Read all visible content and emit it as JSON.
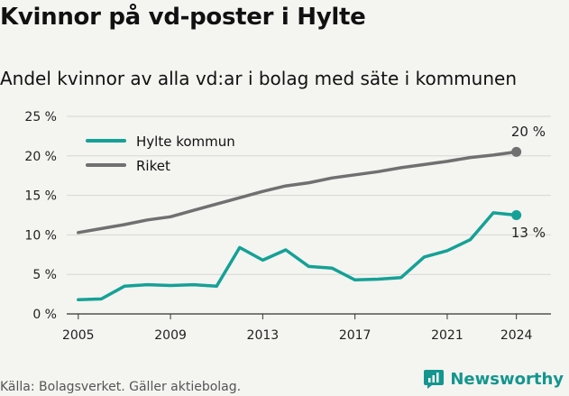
{
  "title": "Kvinnor på vd-poster i Hylte",
  "subtitle": "Andel kvinnor av alla vd:ar i bolag med säte i kommunen",
  "footer": "Källa: Bolagsverket. Gäller aktiebolag.",
  "brand": "Newsworthy",
  "colors": {
    "hylte": "#15a196",
    "riket": "#707070",
    "grid": "#d6d6d2",
    "brand": "#14968e"
  },
  "chart_data": {
    "type": "line",
    "x": [
      2005,
      2006,
      2007,
      2008,
      2009,
      2010,
      2011,
      2012,
      2013,
      2014,
      2015,
      2016,
      2017,
      2018,
      2019,
      2020,
      2021,
      2022,
      2023,
      2024
    ],
    "series": [
      {
        "name": "Hylte kommun",
        "values": [
          1.8,
          1.9,
          3.5,
          3.7,
          3.6,
          3.7,
          3.5,
          8.4,
          6.8,
          8.1,
          6.0,
          5.8,
          4.3,
          4.4,
          4.6,
          7.2,
          8.0,
          9.4,
          12.8,
          12.5
        ],
        "end_label": "13 %"
      },
      {
        "name": "Riket",
        "values": [
          10.3,
          10.8,
          11.3,
          11.9,
          12.3,
          13.1,
          13.9,
          14.7,
          15.5,
          16.2,
          16.6,
          17.2,
          17.6,
          18.0,
          18.5,
          18.9,
          19.3,
          19.8,
          20.1,
          20.5
        ],
        "end_label": "20 %"
      }
    ],
    "ylim": [
      0,
      25
    ],
    "yticks": [
      0,
      5,
      10,
      15,
      20,
      25
    ],
    "ytick_labels": [
      "0 %",
      "5 %",
      "10 %",
      "15 %",
      "20 %",
      "25 %"
    ],
    "xticks": [
      2005,
      2009,
      2013,
      2017,
      2021,
      2024
    ],
    "xtick_labels": [
      "2005",
      "2009",
      "2013",
      "2017",
      "2021",
      "2024"
    ],
    "legend_position": "top-left",
    "grid": true
  }
}
